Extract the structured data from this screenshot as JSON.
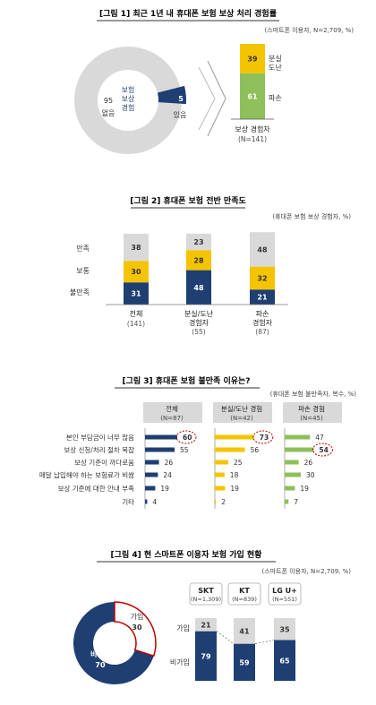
{
  "colors": {
    "navy": "#1f3f73",
    "gray": "#d9d9d9",
    "yellow": "#f5c400",
    "green": "#8fbf5a",
    "red": "#c00000",
    "border": "#999999",
    "dash": "#7f7f7f"
  },
  "fig1": {
    "title": "[그림 1]  최근 1년 내 휴대폰 보험 보상 처리 경험률",
    "note": "(스마트폰 이용자, N=2,709, %)",
    "donut_center": [
      "보험",
      "보상",
      "경험"
    ],
    "slice_no": {
      "value": "95",
      "label": "없음"
    },
    "slice_yes": {
      "value": "5",
      "label": "있음"
    },
    "bar_top": {
      "value": "39",
      "label": [
        "분실",
        "도난"
      ]
    },
    "bar_bottom": {
      "value": "61",
      "label": "파손"
    },
    "bar_caption": "보상 경험자",
    "bar_n": "(N=141)"
  },
  "fig2": {
    "title": "[그림 2] 휴대폰 보험 전반 만족도",
    "note": "(휴대폰 보험 보상 경험자, %)",
    "row_labels": [
      "만족",
      "보통",
      "불만족"
    ],
    "bars": [
      {
        "name": "전체",
        "name2": "",
        "n": "(141)",
        "dissat": "31",
        "neutral": "30",
        "sat": "38"
      },
      {
        "name": "분실/도난",
        "name2": "경험자",
        "n": "(55)",
        "dissat": "48",
        "neutral": "28",
        "sat": "23"
      },
      {
        "name": "파손",
        "name2": "경험자",
        "n": "(87)",
        "dissat": "21",
        "neutral": "32",
        "sat": "48"
      }
    ]
  },
  "fig3": {
    "title": "[그림 3]  휴대폰 보험 불만족 이유는?",
    "note": "(휴대폰 보험 불만족자, 복수, %)",
    "reasons": [
      "본인 부담금이 너무 많음",
      "보상 신청/처리 절차 복잡",
      "보상 기준이 까다로움",
      "매달 납입해야 하는 보험료가 비쌈",
      "보상 기준에 대한 안내 부족",
      "기타"
    ],
    "groups": [
      {
        "name": "전체",
        "n": "(N=87)",
        "values": [
          "60",
          "55",
          "26",
          "24",
          "19",
          "4"
        ]
      },
      {
        "name": "분실/도난 경험",
        "n": "(N=42)",
        "values": [
          "73",
          "56",
          "25",
          "18",
          "19",
          "2"
        ]
      },
      {
        "name": "파손 경험",
        "n": "(N=45)",
        "values": [
          "47",
          "54",
          "26",
          "30",
          "19",
          "7"
        ]
      }
    ]
  },
  "fig4": {
    "title": "[그림 4]  현 스마트폰 이용자 보험 가입 현황",
    "note": "(스마트폰 이용자, N=2,709, %)",
    "donut_join": {
      "label": "가입",
      "value": "30"
    },
    "donut_nonjoin": {
      "label": "비가입",
      "value": "70"
    },
    "row_labels": [
      "가입",
      "비가입"
    ],
    "carriers": [
      {
        "name": "SKT",
        "n": "(N=1,309)",
        "join": "21",
        "nonjoin": "79"
      },
      {
        "name": "KT",
        "n": "(N=839)",
        "join": "41",
        "nonjoin": "59"
      },
      {
        "name": "LG U+",
        "n": "(N=551)",
        "join": "35",
        "nonjoin": "65"
      }
    ]
  },
  "chart_data": [
    {
      "type": "pie",
      "title": "[그림 1]  최근 1년 내 휴대폰 보험 보상 처리 경험률",
      "categories": [
        "없음",
        "있음"
      ],
      "values": [
        95,
        5
      ]
    },
    {
      "type": "bar",
      "stacked": true,
      "title": "보상 경험자",
      "categories": [
        "보상 경험자"
      ],
      "series": [
        {
          "name": "파손",
          "values": [
            61
          ]
        },
        {
          "name": "분실 도난",
          "values": [
            39
          ]
        }
      ]
    },
    {
      "type": "bar",
      "stacked": true,
      "title": "[그림 2] 휴대폰 보험 전반 만족도",
      "categories": [
        "전체",
        "분실/도난 경험자",
        "파손 경험자"
      ],
      "series": [
        {
          "name": "불만족",
          "values": [
            31,
            48,
            21
          ]
        },
        {
          "name": "보통",
          "values": [
            30,
            28,
            32
          ]
        },
        {
          "name": "만족",
          "values": [
            38,
            23,
            48
          ]
        }
      ]
    },
    {
      "type": "bar",
      "orientation": "horizontal",
      "title": "[그림 3]  휴대폰 보험 불만족 이유는?",
      "categories": [
        "본인 부담금이 너무 많음",
        "보상 신청/처리 절차 복잡",
        "보상 기준이 까다로움",
        "매달 납입해야 하는 보험료가 비쌈",
        "보상 기준에 대한 안내 부족",
        "기타"
      ],
      "series": [
        {
          "name": "전체",
          "values": [
            60,
            55,
            26,
            24,
            19,
            4
          ]
        },
        {
          "name": "분실/도난 경험",
          "values": [
            73,
            56,
            25,
            18,
            19,
            2
          ]
        },
        {
          "name": "파손 경험",
          "values": [
            47,
            54,
            26,
            30,
            19,
            7
          ]
        }
      ]
    },
    {
      "type": "pie",
      "title": "[그림 4]  현 스마트폰 이용자 보험 가입 현황",
      "categories": [
        "가입",
        "비가입"
      ],
      "values": [
        30,
        70
      ]
    },
    {
      "type": "bar",
      "stacked": true,
      "categories": [
        "SKT",
        "KT",
        "LG U+"
      ],
      "series": [
        {
          "name": "비가입",
          "values": [
            79,
            59,
            65
          ]
        },
        {
          "name": "가입",
          "values": [
            21,
            41,
            35
          ]
        }
      ]
    }
  ]
}
